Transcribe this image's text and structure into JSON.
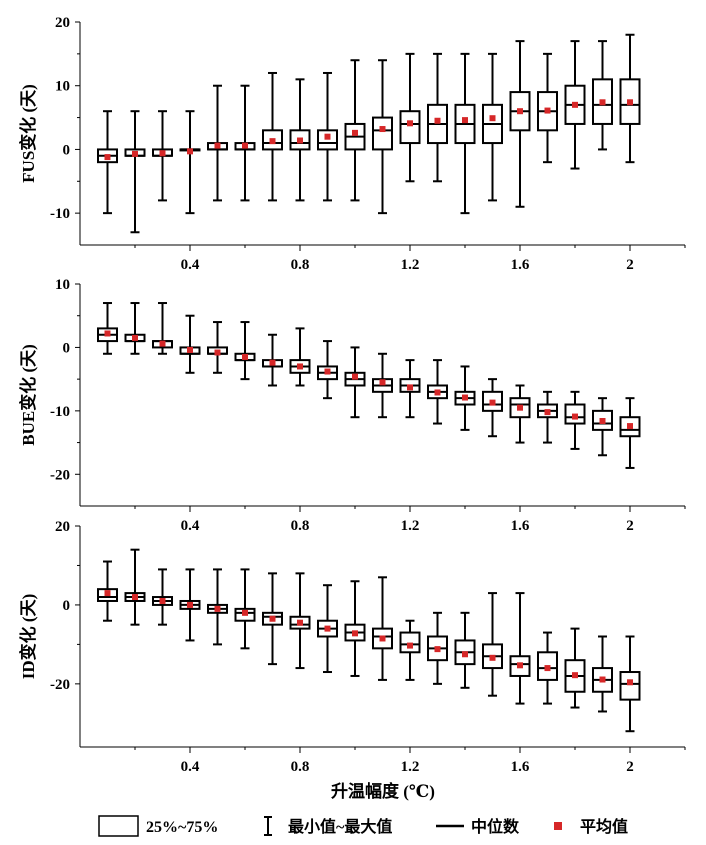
{
  "chart_data": [
    {
      "type": "boxplot",
      "ylabel": "FUS变化 (天)",
      "ylim": [
        -15,
        20
      ],
      "yticks": [
        -10,
        0,
        10,
        20
      ],
      "x": [
        0.1,
        0.2,
        0.3,
        0.4,
        0.5,
        0.6,
        0.7,
        0.8,
        0.9,
        1.0,
        1.1,
        1.2,
        1.3,
        1.4,
        1.5,
        1.6,
        1.7,
        1.8,
        1.9,
        2.0
      ],
      "q1": [
        -2,
        -1,
        -1,
        0,
        0,
        0,
        0,
        0,
        0,
        0,
        0,
        1,
        1,
        1,
        1,
        3,
        3,
        4,
        4,
        4
      ],
      "q3": [
        0,
        0,
        0,
        0,
        1,
        1,
        3,
        3,
        3,
        4,
        5,
        6,
        7,
        7,
        7,
        9,
        9,
        10,
        11,
        11
      ],
      "median": [
        -1,
        -1,
        -1,
        0,
        0,
        0,
        1,
        1,
        1,
        2,
        3,
        4,
        4,
        4,
        4,
        6,
        6,
        7,
        7,
        7
      ],
      "min": [
        -10,
        -13,
        -8,
        -10,
        -8,
        -8,
        -8,
        -8,
        -8,
        -8,
        -10,
        -5,
        -5,
        -10,
        -8,
        -9,
        -2,
        -3,
        0,
        -2
      ],
      "max": [
        6,
        6,
        6,
        6,
        10,
        10,
        12,
        11,
        12,
        14,
        14,
        15,
        15,
        15,
        15,
        17,
        15,
        17,
        17,
        18
      ],
      "mean": [
        -1.2,
        -0.7,
        -0.6,
        -0.3,
        0.6,
        0.6,
        1.3,
        1.4,
        2.0,
        2.6,
        3.2,
        4.1,
        4.5,
        4.6,
        4.9,
        6.0,
        6.1,
        7.0,
        7.4,
        7.4
      ]
    },
    {
      "type": "boxplot",
      "ylabel": "BUE变化 (天)",
      "ylim": [
        -25,
        10
      ],
      "yticks": [
        -20,
        -10,
        0,
        10
      ],
      "x": [
        0.1,
        0.2,
        0.3,
        0.4,
        0.5,
        0.6,
        0.7,
        0.8,
        0.9,
        1.0,
        1.1,
        1.2,
        1.3,
        1.4,
        1.5,
        1.6,
        1.7,
        1.8,
        1.9,
        2.0
      ],
      "q1": [
        1,
        1,
        0,
        -1,
        -1,
        -2,
        -3,
        -4,
        -5,
        -6,
        -7,
        -7,
        -8,
        -9,
        -10,
        -11,
        -11,
        -12,
        -13,
        -14
      ],
      "q3": [
        3,
        2,
        1,
        0,
        0,
        -1,
        -2,
        -2,
        -3,
        -4,
        -5,
        -5,
        -6,
        -7,
        -7,
        -8,
        -9,
        -9,
        -10,
        -11
      ],
      "median": [
        2,
        1,
        1,
        -1,
        -1,
        -2,
        -3,
        -3,
        -4,
        -5,
        -6,
        -6,
        -7,
        -8,
        -9,
        -9,
        -10,
        -11,
        -12,
        -13
      ],
      "min": [
        -1,
        -1,
        -1,
        -4,
        -4,
        -5,
        -6,
        -6,
        -8,
        -11,
        -11,
        -11,
        -12,
        -13,
        -14,
        -15,
        -15,
        -16,
        -17,
        -19
      ],
      "max": [
        7,
        7,
        7,
        5,
        4,
        4,
        2,
        3,
        1,
        0,
        -1,
        -2,
        -2,
        -3,
        -5,
        -6,
        -7,
        -7,
        -8,
        -8
      ],
      "mean": [
        2.2,
        1.5,
        0.6,
        -0.4,
        -0.8,
        -1.5,
        -2.4,
        -3.0,
        -3.8,
        -4.6,
        -5.5,
        -6.3,
        -7.1,
        -7.9,
        -8.7,
        -9.5,
        -10.2,
        -10.9,
        -11.6,
        -12.4
      ]
    },
    {
      "type": "boxplot",
      "ylabel": "ID变化 (天)",
      "ylim": [
        -36,
        20
      ],
      "yticks": [
        -20,
        0,
        20
      ],
      "x": [
        0.1,
        0.2,
        0.3,
        0.4,
        0.5,
        0.6,
        0.7,
        0.8,
        0.9,
        1.0,
        1.1,
        1.2,
        1.3,
        1.4,
        1.5,
        1.6,
        1.7,
        1.8,
        1.9,
        2.0
      ],
      "q1": [
        1,
        1,
        0,
        -1,
        -2,
        -4,
        -5,
        -6,
        -8,
        -9,
        -11,
        -12,
        -14,
        -15,
        -16,
        -18,
        -19,
        -22,
        -22,
        -24
      ],
      "q3": [
        4,
        3,
        2,
        1,
        0,
        -1,
        -2,
        -3,
        -4,
        -5,
        -6,
        -7,
        -8,
        -9,
        -10,
        -13,
        -12,
        -14,
        -16,
        -17
      ],
      "median": [
        2,
        2,
        1,
        0,
        -1,
        -2,
        -3,
        -5,
        -6,
        -7,
        -8,
        -10,
        -11,
        -12,
        -13,
        -15,
        -16,
        -18,
        -19,
        -20
      ],
      "min": [
        -4,
        -5,
        -5,
        -9,
        -10,
        -11,
        -15,
        -16,
        -17,
        -18,
        -19,
        -19,
        -20,
        -21,
        -23,
        -25,
        -25,
        -26,
        -27,
        -32
      ],
      "max": [
        11,
        14,
        9,
        9,
        9,
        9,
        8,
        8,
        5,
        6,
        7,
        -4,
        -2,
        -2,
        3,
        3,
        -7,
        -6,
        -8,
        -8
      ],
      "mean": [
        3.0,
        2.0,
        1.0,
        0.0,
        -1.0,
        -2.0,
        -3.5,
        -4.5,
        -6.0,
        -7.2,
        -8.5,
        -10.3,
        -11.2,
        -12.5,
        -13.4,
        -15.3,
        -16.0,
        -17.8,
        -18.9,
        -19.6
      ]
    }
  ],
  "xaxis": {
    "label": "升温幅度 (℃)",
    "range": [
      0,
      2.2
    ],
    "ticks": [
      0.4,
      0.8,
      1.2,
      1.6,
      2.0
    ],
    "tick_labels": [
      "0.4",
      "0.8",
      "1.2",
      "1.6",
      "2"
    ]
  },
  "legend": {
    "box": "25%~75%",
    "whisker": "最小值~最大值",
    "median": "中位数",
    "mean": "平均值"
  },
  "colors": {
    "mean_marker": "#d62728",
    "axis": "#000000",
    "box_fill": "#ffffff"
  }
}
